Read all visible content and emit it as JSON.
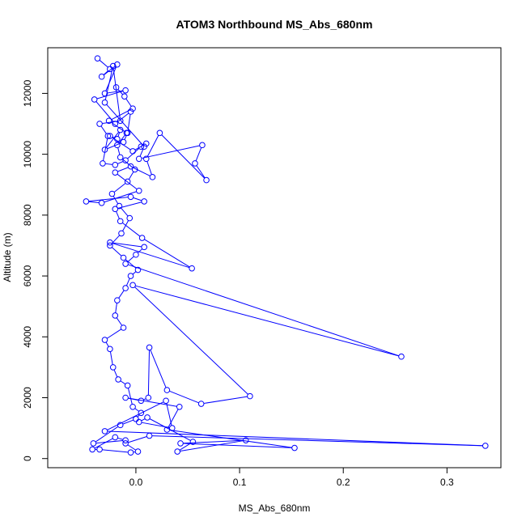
{
  "chart_data": {
    "type": "line",
    "title": "ATOM3 Northbound MS_Abs_680nm",
    "xlabel": "MS_Abs_680nm",
    "ylabel": "Altitude (m)",
    "xlim": [
      -0.085,
      0.352
    ],
    "ylim": [
      -300,
      13500
    ],
    "xticks": [
      0.0,
      0.1,
      0.2,
      0.3
    ],
    "xtick_labels": [
      "0.0",
      "0.1",
      "0.2",
      "0.3"
    ],
    "yticks": [
      0,
      2000,
      4000,
      6000,
      8000,
      10000,
      12000
    ],
    "ytick_labels": [
      "0",
      "2000",
      "4000",
      "6000",
      "8000",
      "10000",
      "12000"
    ],
    "marker": "open-circle",
    "color": "#0000ff",
    "grid": false,
    "series": [
      {
        "x": [
          -0.037,
          -0.025,
          -0.033,
          -0.018,
          -0.03,
          -0.01,
          -0.04,
          -0.02,
          -0.005,
          -0.008,
          -0.012,
          -0.03,
          -0.015,
          -0.018,
          -0.025,
          -0.003,
          0.01,
          0.005,
          -0.01,
          -0.02,
          -0.032,
          -0.027,
          -0.035,
          -0.015,
          -0.022,
          -0.03,
          0.008,
          0.003,
          0.064,
          0.057,
          0.068,
          0.023,
          0.01,
          0.016,
          -0.005,
          -0.02,
          0.003,
          -0.033,
          -0.048,
          -0.005,
          0.008,
          -0.02,
          -0.015,
          0.006,
          0.054,
          -0.025,
          0.008,
          0.0,
          -0.01,
          0.256,
          -0.003,
          0.11,
          0.063,
          0.03,
          0.013,
          0.012,
          0.005,
          -0.01,
          0.042,
          0.03,
          0.153,
          0.043,
          0.106,
          0.04,
          0.055,
          0.011,
          0.003,
          0.035,
          0.029,
          -0.03,
          0.337,
          0.013,
          -0.01,
          0.002,
          -0.005,
          -0.035,
          -0.042,
          -0.02,
          -0.01,
          -0.041,
          -0.015,
          0.0,
          0.005,
          -0.003,
          -0.008,
          -0.017,
          -0.022,
          -0.025,
          -0.03,
          -0.012,
          -0.02,
          -0.018,
          -0.01,
          -0.005,
          0.002,
          -0.012,
          -0.025,
          -0.014,
          -0.006,
          -0.016,
          -0.023,
          -0.008,
          -0.001,
          -0.015,
          -0.018,
          -0.009,
          -0.026,
          -0.003,
          -0.011,
          -0.019
        ],
        "y": [
          13150,
          12800,
          12550,
          12950,
          12000,
          12100,
          11800,
          11000,
          11400,
          10700,
          10400,
          10150,
          10800,
          10500,
          10600,
          10100,
          10350,
          10250,
          9800,
          9650,
          9700,
          10600,
          11000,
          11100,
          12900,
          11700,
          10250,
          9850,
          10300,
          9700,
          9150,
          10700,
          9850,
          9250,
          9600,
          9400,
          8800,
          8400,
          8450,
          8600,
          8450,
          8200,
          7800,
          7250,
          6250,
          7100,
          6950,
          6700,
          6400,
          3350,
          5700,
          2050,
          1800,
          2250,
          3650,
          2000,
          1900,
          2000,
          1700,
          950,
          350,
          500,
          600,
          230,
          550,
          1350,
          1200,
          1000,
          1900,
          900,
          420,
          750,
          500,
          230,
          200,
          300,
          300,
          700,
          600,
          500,
          1100,
          1300,
          1500,
          1700,
          2400,
          2600,
          3000,
          3600,
          3900,
          4300,
          4700,
          5200,
          5600,
          6000,
          6200,
          6600,
          7000,
          7400,
          7900,
          8300,
          8700,
          9100,
          9500,
          9900,
          10300,
          10700,
          11100,
          11500,
          11900,
          12200
        ]
      }
    ]
  }
}
